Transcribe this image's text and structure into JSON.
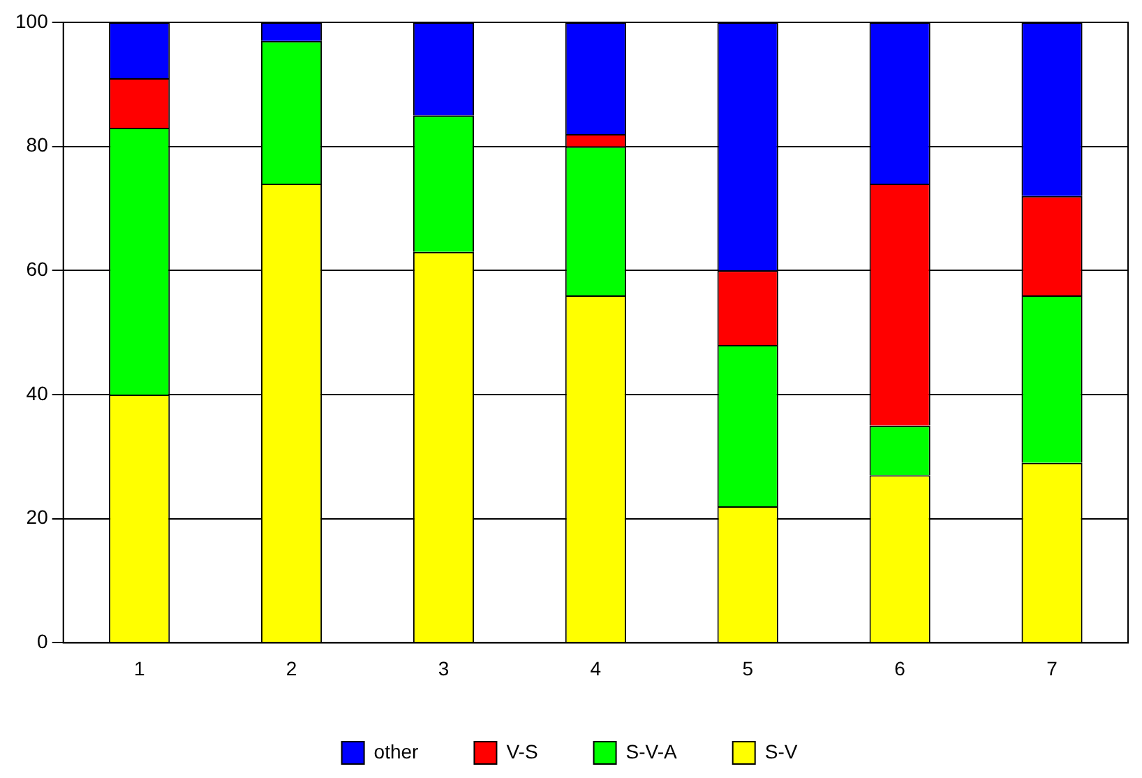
{
  "chart_data": {
    "type": "bar",
    "stacked": true,
    "categories": [
      "1",
      "2",
      "3",
      "4",
      "5",
      "6",
      "7"
    ],
    "series": [
      {
        "name": "S-V",
        "color": "#ffff00",
        "values": [
          40,
          74,
          63,
          56,
          22,
          27,
          29
        ]
      },
      {
        "name": "S-V-A",
        "color": "#00ff00",
        "values": [
          43,
          23,
          22,
          24,
          26,
          8,
          27
        ]
      },
      {
        "name": "V-S",
        "color": "#ff0000",
        "values": [
          8,
          0,
          0,
          2,
          12,
          39,
          16
        ]
      },
      {
        "name": "other",
        "color": "#0000ff",
        "values": [
          9,
          3,
          15,
          18,
          40,
          26,
          28
        ]
      }
    ],
    "ylim": [
      0,
      100
    ],
    "yticks": [
      0,
      20,
      40,
      60,
      80,
      100
    ],
    "grid": "y",
    "legend": "bottom"
  }
}
